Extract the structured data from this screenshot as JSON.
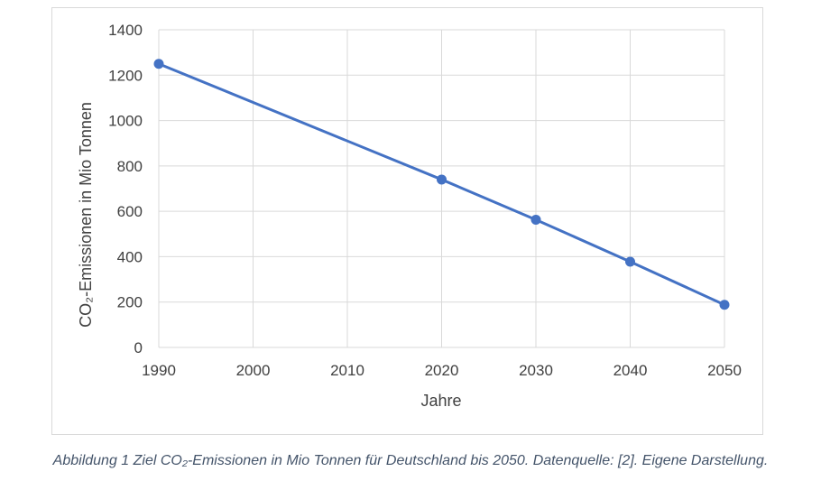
{
  "chart_data": {
    "type": "line",
    "xlabel": "Jahre",
    "ylabel": "CO₂-Emissionen in Mio Tonnen",
    "xlim": [
      1990,
      2050
    ],
    "ylim": [
      0,
      1400
    ],
    "x_ticks": [
      "1990",
      "2000",
      "2010",
      "2020",
      "2030",
      "2040",
      "2050"
    ],
    "y_ticks": [
      "0",
      "200",
      "400",
      "600",
      "800",
      "1000",
      "1200",
      "1400"
    ],
    "grid": true,
    "series": [
      {
        "x": [
          1990,
          2020,
          2030,
          2040,
          2050
        ],
        "values": [
          1250,
          740,
          563,
          378,
          188
        ],
        "color": "#4472c4"
      }
    ]
  },
  "caption": "Abbildung 1 Ziel CO₂-Emissionen in Mio Tonnen für Deutschland bis 2050. Datenquelle: [2]. Eigene Darstellung."
}
